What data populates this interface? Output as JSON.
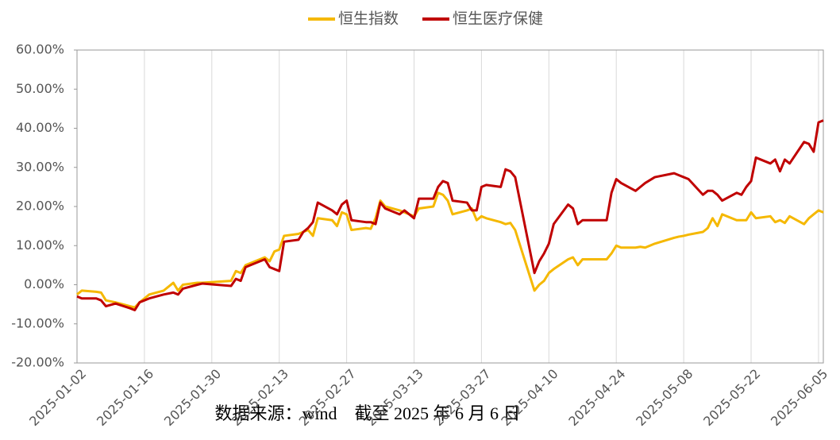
{
  "chart_data": {
    "type": "line",
    "x": [
      "2025-01-02",
      "2025-01-03",
      "2025-01-06",
      "2025-01-07",
      "2025-01-08",
      "2025-01-10",
      "2025-01-13",
      "2025-01-14",
      "2025-01-15",
      "2025-01-16",
      "2025-01-17",
      "2025-01-20",
      "2025-01-22",
      "2025-01-23",
      "2025-01-24",
      "2025-01-27",
      "2025-01-28",
      "2025-02-03",
      "2025-02-04",
      "2025-02-05",
      "2025-02-06",
      "2025-02-07",
      "2025-02-10",
      "2025-02-11",
      "2025-02-12",
      "2025-02-13",
      "2025-02-14",
      "2025-02-17",
      "2025-02-18",
      "2025-02-19",
      "2025-02-20",
      "2025-02-21",
      "2025-02-24",
      "2025-02-25",
      "2025-02-26",
      "2025-02-27",
      "2025-02-28",
      "2025-03-03",
      "2025-03-04",
      "2025-03-05",
      "2025-03-06",
      "2025-03-07",
      "2025-03-10",
      "2025-03-11",
      "2025-03-12",
      "2025-03-13",
      "2025-03-14",
      "2025-03-17",
      "2025-03-18",
      "2025-03-19",
      "2025-03-20",
      "2025-03-21",
      "2025-03-24",
      "2025-03-25",
      "2025-03-26",
      "2025-03-27",
      "2025-03-28",
      "2025-03-31",
      "2025-04-01",
      "2025-04-02",
      "2025-04-03",
      "2025-04-07",
      "2025-04-08",
      "2025-04-09",
      "2025-04-10",
      "2025-04-11",
      "2025-04-14",
      "2025-04-15",
      "2025-04-16",
      "2025-04-17",
      "2025-04-22",
      "2025-04-23",
      "2025-04-24",
      "2025-04-25",
      "2025-04-28",
      "2025-04-29",
      "2025-04-30",
      "2025-05-02",
      "2025-05-06",
      "2025-05-07",
      "2025-05-08",
      "2025-05-09",
      "2025-05-12",
      "2025-05-13",
      "2025-05-14",
      "2025-05-15",
      "2025-05-16",
      "2025-05-19",
      "2025-05-20",
      "2025-05-21",
      "2025-05-22",
      "2025-05-23",
      "2025-05-26",
      "2025-05-27",
      "2025-05-28",
      "2025-05-29",
      "2025-05-30",
      "2025-06-02",
      "2025-06-03",
      "2025-06-04",
      "2025-06-05",
      "2025-06-06"
    ],
    "series": [
      {
        "name": "恒生指数",
        "color": "#f5b800",
        "values": [
          -2.5,
          -1.5,
          -1.8,
          -2,
          -4,
          -4.5,
          -5.5,
          -5.8,
          -4.5,
          -3.5,
          -2.5,
          -1.5,
          0.5,
          -1.5,
          0,
          0.5,
          0.5,
          1,
          3.5,
          3,
          5,
          5.5,
          7,
          6,
          8.5,
          9,
          12.5,
          13,
          13.5,
          14,
          12.5,
          17,
          16.5,
          15,
          18.5,
          18,
          14,
          14.5,
          14.3,
          17,
          21.5,
          20,
          19,
          18.5,
          18,
          17.5,
          19.5,
          20,
          23.5,
          23,
          21.5,
          18,
          19,
          19.5,
          16.5,
          17.5,
          17,
          16,
          15.5,
          15.8,
          14,
          -1.5,
          0,
          1,
          3,
          4,
          6.5,
          7,
          5,
          6.5,
          6.5,
          8,
          10,
          9.5,
          9.5,
          9.7,
          9.5,
          10.5,
          12,
          12.3,
          12.5,
          12.8,
          13.5,
          14.5,
          17,
          15,
          18,
          16.5,
          16.5,
          16.5,
          18.5,
          17,
          17.5,
          16,
          16.5,
          15.8,
          17.5,
          15.5,
          17,
          18,
          19,
          18.5
        ]
      },
      {
        "name": "恒生医疗保健",
        "color": "#c00000",
        "values": [
          -3,
          -3.5,
          -3.5,
          -4,
          -5.5,
          -4.8,
          -6,
          -6.5,
          -4.5,
          -4,
          -3.5,
          -2.5,
          -2,
          -2.5,
          -1,
          0,
          0.3,
          -0.3,
          1.5,
          1,
          4.5,
          5,
          6.5,
          4.5,
          4,
          3.5,
          11,
          11.5,
          13.5,
          14.5,
          16,
          21,
          19,
          18,
          20.5,
          21.5,
          16.5,
          16,
          16,
          15.5,
          21,
          19.5,
          18,
          19,
          18,
          17,
          22,
          22,
          25,
          26.5,
          26,
          21.5,
          21,
          19,
          19,
          25,
          25.5,
          25,
          29.5,
          29,
          27.5,
          3,
          6,
          8,
          10.5,
          15.5,
          20.5,
          19.5,
          15.5,
          16.5,
          16.5,
          23.5,
          27,
          26,
          24,
          25,
          26,
          27.5,
          28.5,
          28,
          27.5,
          27,
          23,
          24,
          24,
          23,
          21.5,
          23.5,
          23,
          25,
          26.5,
          32.5,
          31,
          32,
          29,
          32,
          31,
          36.5,
          36,
          34,
          41.5,
          42
        ]
      }
    ],
    "xlim": [
      "2025-01-02",
      "2025-06-06"
    ],
    "xticks": [
      "2025-01-02",
      "2025-01-16",
      "2025-01-30",
      "2025-02-13",
      "2025-02-27",
      "2025-03-13",
      "2025-03-27",
      "2025-04-10",
      "2025-04-24",
      "2025-05-08",
      "2025-05-22",
      "2025-06-05"
    ],
    "ylim": [
      -20,
      60
    ],
    "yticks": [
      {
        "value": -20,
        "label": "-20.00%"
      },
      {
        "value": -10,
        "label": "-10.00%"
      },
      {
        "value": 0,
        "label": "0.00%"
      },
      {
        "value": 10,
        "label": "10.00%"
      },
      {
        "value": 20,
        "label": "20.00%"
      },
      {
        "value": 30,
        "label": "30.00%"
      },
      {
        "value": 40,
        "label": "40.00%"
      },
      {
        "value": 50,
        "label": "50.00%"
      },
      {
        "value": 60,
        "label": "60.00%"
      }
    ],
    "grid": true,
    "legend": "top",
    "note": "数据来源：wind　截至 2025 年 6 月 6 日"
  }
}
